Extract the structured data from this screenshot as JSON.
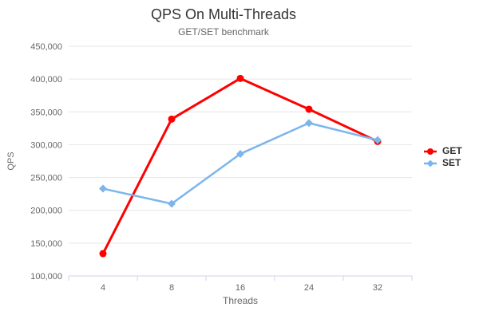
{
  "chart_data": {
    "type": "line",
    "title": "QPS On Multi-Threads",
    "subtitle": "GET/SET benchmark",
    "xlabel": "Threads",
    "ylabel": "QPS",
    "categories": [
      "4",
      "8",
      "16",
      "24",
      "32"
    ],
    "series": [
      {
        "name": "GET",
        "color": "#ff0000",
        "marker": "circle",
        "line_width": 3,
        "values": [
          134000,
          339000,
          401000,
          354000,
          305000
        ]
      },
      {
        "name": "SET",
        "color": "#7cb5ec",
        "marker": "diamond",
        "line_width": 2.5,
        "values": [
          233000,
          210000,
          286000,
          333000,
          307000
        ]
      }
    ],
    "ylim": [
      100000,
      450000
    ],
    "ytick_step": 50000,
    "ytick_labels": [
      "100,000",
      "150,000",
      "200,000",
      "250,000",
      "300,000",
      "350,000",
      "400,000",
      "450,000"
    ],
    "grid": true,
    "legend_position": "right",
    "colors": {
      "grid": "#e6e6e6",
      "axis_line": "#ccd6eb",
      "tick_label": "#666666",
      "title": "#333333",
      "subtitle": "#666666",
      "legend_text": "#333333",
      "background": "#ffffff"
    }
  }
}
